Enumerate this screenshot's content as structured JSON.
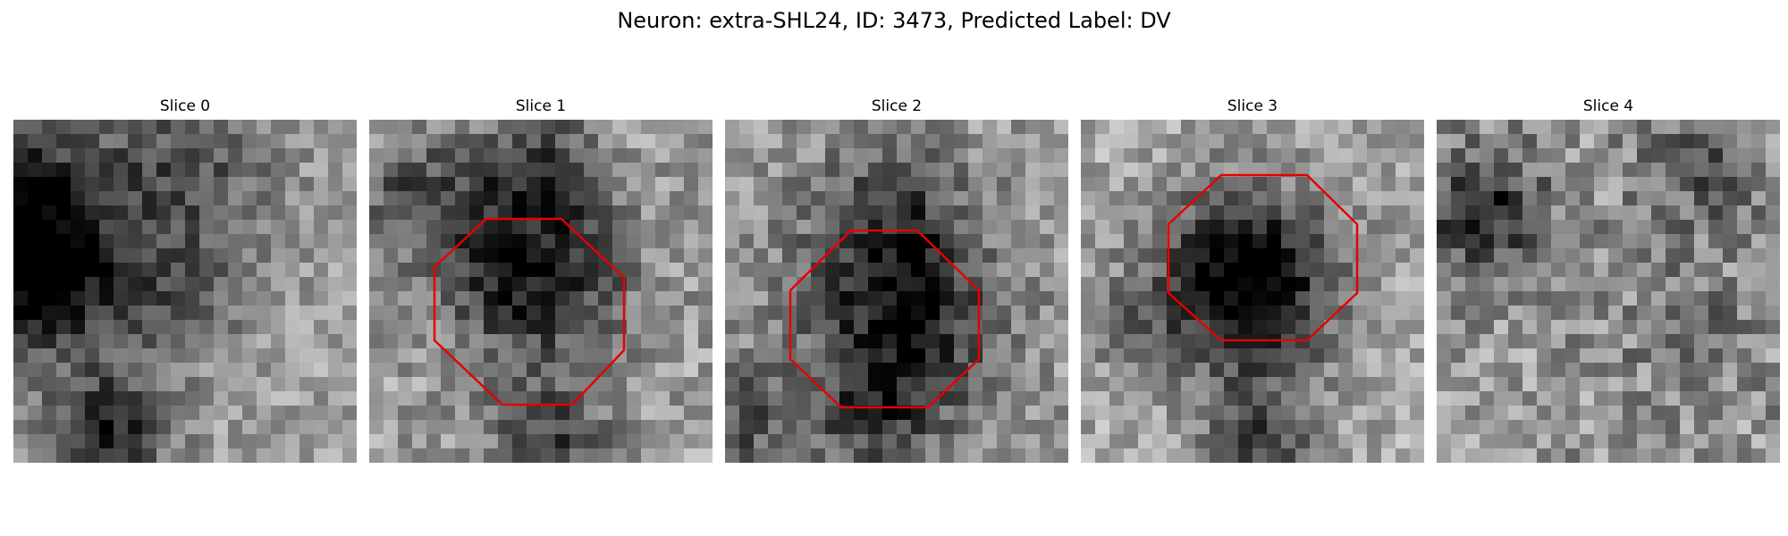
{
  "figure": {
    "title": "Neuron: extra-SHL24, ID: 3473, Predicted Label: DV"
  },
  "slices": [
    {
      "label": "Slice 0",
      "has_roi": false
    },
    {
      "label": "Slice 1",
      "has_roi": true
    },
    {
      "label": "Slice 2",
      "has_roi": true
    },
    {
      "label": "Slice 3",
      "has_roi": true
    },
    {
      "label": "Slice 4",
      "has_roi": false
    }
  ],
  "colors": {
    "roi_outline": "#e60000",
    "colormap": "grayscale"
  }
}
